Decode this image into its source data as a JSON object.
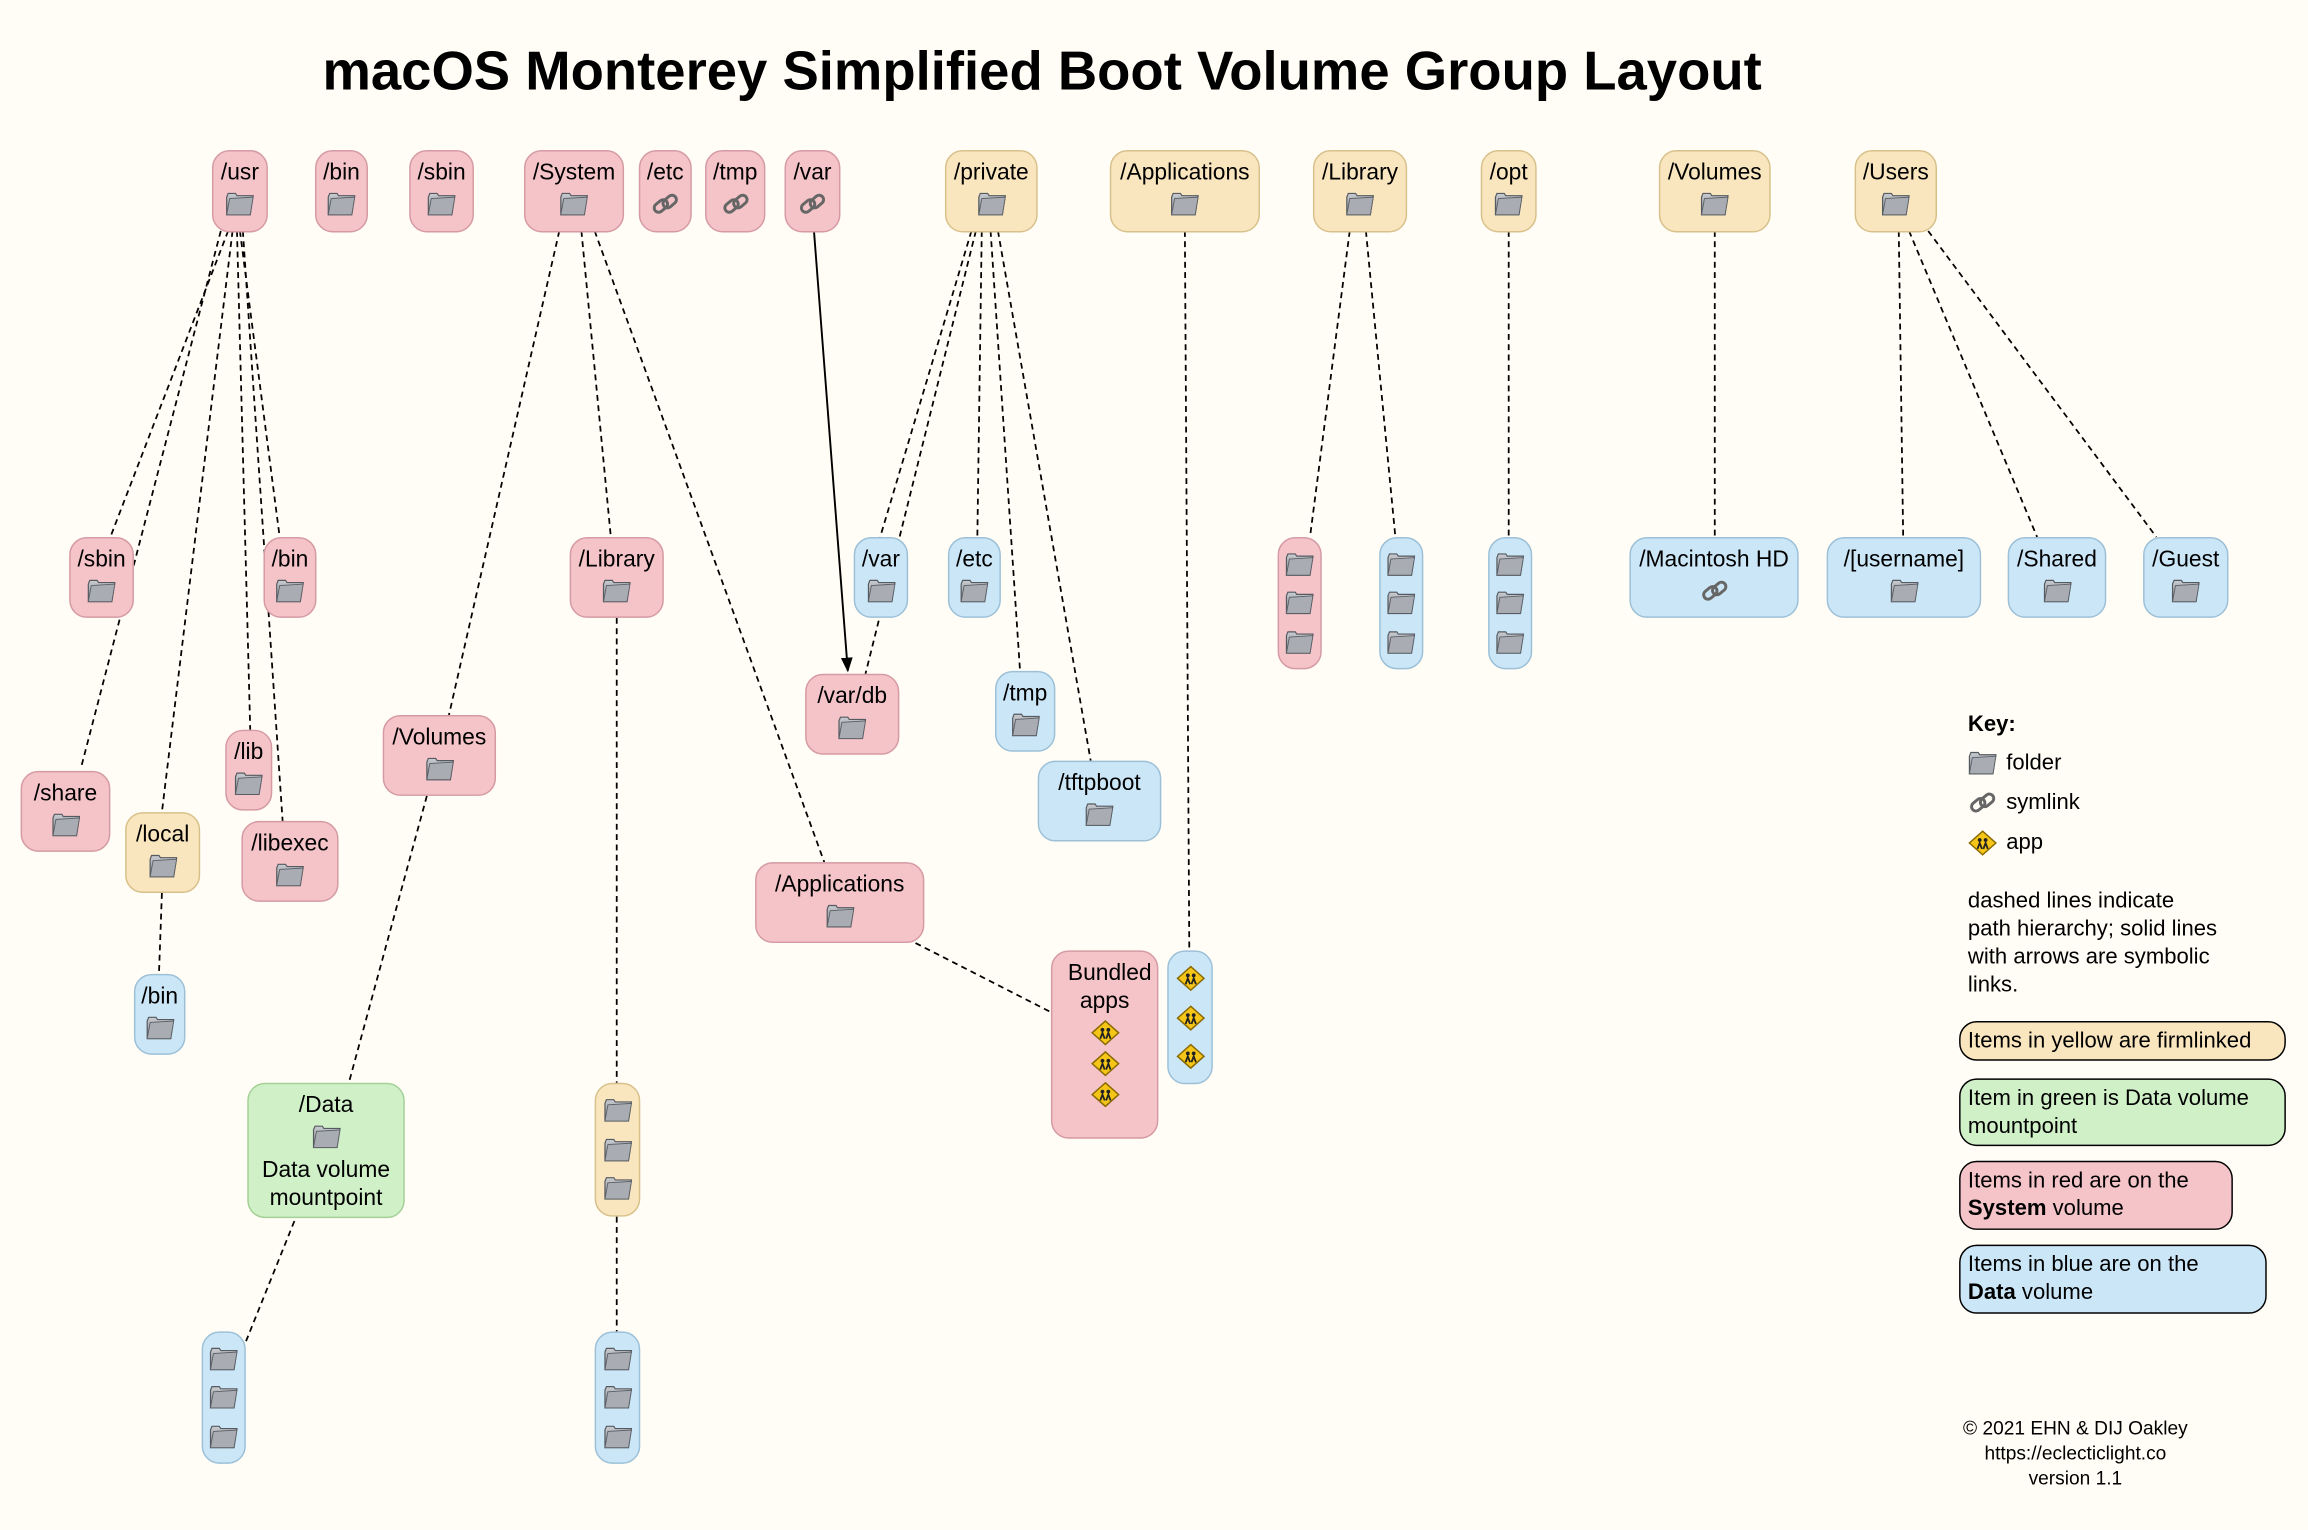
{
  "title": "macOS Monterey Simplified Boot Volume Group Layout",
  "colors": {
    "red": "#f4c4c9",
    "yellow": "#f9e6bf",
    "blue": "#cbe6f7",
    "green": "#d0f0c8",
    "background": "#fffdf5"
  },
  "nodes": [
    {
      "id": "usr",
      "label": "/usr",
      "color": "red",
      "icons": [
        "folder"
      ]
    },
    {
      "id": "bin",
      "label": "/bin",
      "color": "red",
      "icons": [
        "folder"
      ]
    },
    {
      "id": "sbin",
      "label": "/sbin",
      "color": "red",
      "icons": [
        "folder"
      ]
    },
    {
      "id": "system",
      "label": "/System",
      "color": "red",
      "icons": [
        "folder"
      ]
    },
    {
      "id": "etc",
      "label": "/etc",
      "color": "red",
      "icons": [
        "symlink"
      ]
    },
    {
      "id": "tmp",
      "label": "/tmp",
      "color": "red",
      "icons": [
        "symlink"
      ]
    },
    {
      "id": "var",
      "label": "/var",
      "color": "red",
      "icons": [
        "symlink"
      ]
    },
    {
      "id": "private",
      "label": "/private",
      "color": "yellow",
      "icons": [
        "folder"
      ]
    },
    {
      "id": "applications",
      "label": "/Applications",
      "color": "yellow",
      "icons": [
        "folder"
      ]
    },
    {
      "id": "library",
      "label": "/Library",
      "color": "yellow",
      "icons": [
        "folder"
      ]
    },
    {
      "id": "opt",
      "label": "/opt",
      "color": "yellow",
      "icons": [
        "folder"
      ]
    },
    {
      "id": "volumes",
      "label": "/Volumes",
      "color": "yellow",
      "icons": [
        "folder"
      ]
    },
    {
      "id": "users",
      "label": "/Users",
      "color": "yellow",
      "icons": [
        "folder"
      ]
    },
    {
      "id": "usr_sbin",
      "label": "/sbin",
      "color": "red",
      "icons": [
        "folder"
      ]
    },
    {
      "id": "usr_bin",
      "label": "/bin",
      "color": "red",
      "icons": [
        "folder"
      ]
    },
    {
      "id": "usr_share",
      "label": "/share",
      "color": "red",
      "icons": [
        "folder"
      ]
    },
    {
      "id": "usr_local",
      "label": "/local",
      "color": "yellow",
      "icons": [
        "folder"
      ]
    },
    {
      "id": "usr_lib",
      "label": "/lib",
      "color": "red",
      "icons": [
        "folder"
      ]
    },
    {
      "id": "usr_libexec",
      "label": "/libexec",
      "color": "red",
      "icons": [
        "folder"
      ]
    },
    {
      "id": "local_bin",
      "label": "/bin",
      "color": "blue",
      "icons": [
        "folder"
      ]
    },
    {
      "id": "sys_volumes",
      "label": "/Volumes",
      "color": "red",
      "icons": [
        "folder"
      ]
    },
    {
      "id": "data",
      "label": "/Data",
      "color": "green",
      "icons": [
        "folder"
      ],
      "extra": "Data volume mountpoint"
    },
    {
      "id": "data_stack",
      "label": "",
      "color": "blue",
      "icons": [
        "folder",
        "folder",
        "folder"
      ]
    },
    {
      "id": "sys_library",
      "label": "/Library",
      "color": "red",
      "icons": [
        "folder"
      ]
    },
    {
      "id": "sys_lib_yellow_stack",
      "label": "",
      "color": "yellow",
      "icons": [
        "folder",
        "folder",
        "folder"
      ]
    },
    {
      "id": "sys_lib_blue_stack",
      "label": "",
      "color": "blue",
      "icons": [
        "folder",
        "folder",
        "folder"
      ]
    },
    {
      "id": "sys_applications",
      "label": "/Applications",
      "color": "red",
      "icons": [
        "folder"
      ]
    },
    {
      "id": "bundled_apps",
      "label": "Bundled apps",
      "color": "red",
      "icons": [
        "app",
        "app",
        "app"
      ]
    },
    {
      "id": "apps_stack",
      "label": "",
      "color": "blue",
      "icons": [
        "app",
        "app",
        "app"
      ]
    },
    {
      "id": "private_var",
      "label": "/var",
      "color": "blue",
      "icons": [
        "folder"
      ]
    },
    {
      "id": "private_etc",
      "label": "/etc",
      "color": "blue",
      "icons": [
        "folder"
      ]
    },
    {
      "id": "var_db",
      "label": "/var/db",
      "color": "red",
      "icons": [
        "folder"
      ]
    },
    {
      "id": "private_tmp",
      "label": "/tmp",
      "color": "blue",
      "icons": [
        "folder"
      ]
    },
    {
      "id": "tftpboot",
      "label": "/tftpboot",
      "color": "blue",
      "icons": [
        "folder"
      ]
    },
    {
      "id": "lib_red_stack",
      "label": "",
      "color": "red",
      "icons": [
        "folder",
        "folder",
        "folder"
      ]
    },
    {
      "id": "lib_blue_stack",
      "label": "",
      "color": "blue",
      "icons": [
        "folder",
        "folder",
        "folder"
      ]
    },
    {
      "id": "opt_stack",
      "label": "",
      "color": "blue",
      "icons": [
        "folder",
        "folder",
        "folder"
      ]
    },
    {
      "id": "macintosh_hd",
      "label": "/Macintosh HD",
      "color": "blue",
      "icons": [
        "symlink"
      ]
    },
    {
      "id": "username",
      "label": "/[username]",
      "color": "blue",
      "icons": [
        "folder"
      ]
    },
    {
      "id": "shared",
      "label": "/Shared",
      "color": "blue",
      "icons": [
        "folder"
      ]
    },
    {
      "id": "guest",
      "label": "/Guest",
      "color": "blue",
      "icons": [
        "folder"
      ]
    }
  ],
  "legend": {
    "title": "Key:",
    "items": [
      {
        "icon": "folder",
        "label": "folder"
      },
      {
        "icon": "symlink",
        "label": "symlink"
      },
      {
        "icon": "app",
        "label": "app"
      }
    ],
    "note": "dashed lines indicate path hierarchy; solid lines with arrows are symbolic links.",
    "yellow": "Items in yellow are firmlinked",
    "green": "Item in green is Data volume mountpoint",
    "red_pre": "Items in red are on the",
    "red_bold": "System",
    "red_post": "volume",
    "blue_pre": "Items in blue are on the",
    "blue_bold": "Data",
    "blue_post": "volume"
  },
  "footer": {
    "copyright": "© 2021 EHN & DIJ Oakley",
    "url": "https://eclecticlight.co",
    "version": "version 1.1"
  }
}
